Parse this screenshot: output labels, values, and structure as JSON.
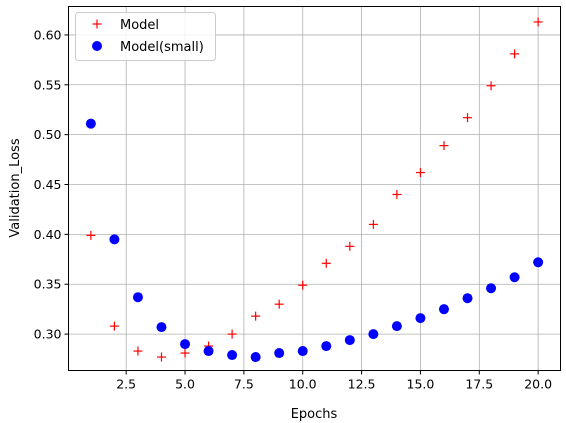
{
  "chart_data": {
    "type": "scatter",
    "xlabel": "Epochs",
    "ylabel": "Validation_Loss",
    "xlim": [
      0.05,
      20.95
    ],
    "ylim": [
      0.2635,
      0.6285
    ],
    "xticks": [
      "2.5",
      "5.0",
      "7.5",
      "10.0",
      "12.5",
      "15.0",
      "17.5",
      "20.0"
    ],
    "xtick_values": [
      2.5,
      5.0,
      7.5,
      10.0,
      12.5,
      15.0,
      17.5,
      20.0
    ],
    "yticks": [
      "0.30",
      "0.35",
      "0.40",
      "0.45",
      "0.50",
      "0.55",
      "0.60"
    ],
    "ytick_values": [
      0.3,
      0.35,
      0.4,
      0.45,
      0.5,
      0.55,
      0.6
    ],
    "grid": true,
    "legend_position": "top-left",
    "series": [
      {
        "name": "Model",
        "marker": "plus",
        "color": "#ff0000",
        "x": [
          1,
          2,
          3,
          4,
          5,
          6,
          7,
          8,
          9,
          10,
          11,
          12,
          13,
          14,
          15,
          16,
          17,
          18,
          19,
          20
        ],
        "y": [
          0.399,
          0.308,
          0.283,
          0.277,
          0.281,
          0.288,
          0.3,
          0.318,
          0.33,
          0.349,
          0.371,
          0.388,
          0.41,
          0.44,
          0.462,
          0.489,
          0.517,
          0.549,
          0.581,
          0.613
        ]
      },
      {
        "name": "Model(small)",
        "marker": "circle",
        "color": "#0000ff",
        "x": [
          1,
          2,
          3,
          4,
          5,
          6,
          7,
          8,
          9,
          10,
          11,
          12,
          13,
          14,
          15,
          16,
          17,
          18,
          19,
          20
        ],
        "y": [
          0.511,
          0.395,
          0.337,
          0.307,
          0.29,
          0.283,
          0.279,
          0.277,
          0.281,
          0.283,
          0.288,
          0.294,
          0.3,
          0.308,
          0.316,
          0.325,
          0.336,
          0.346,
          0.357,
          0.372
        ]
      }
    ]
  }
}
